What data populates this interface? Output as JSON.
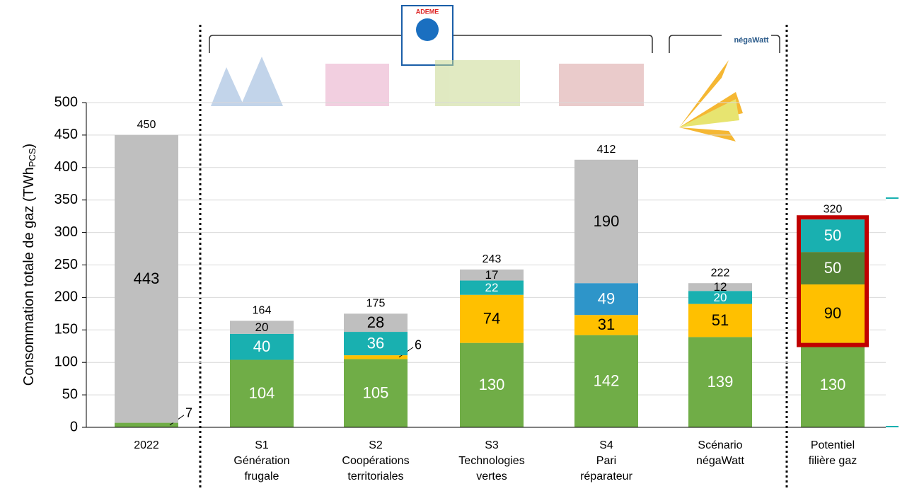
{
  "chart_data": {
    "type": "stacked-bar",
    "y_label": {
      "text": "Consommation totale de gaz (TWh",
      "sub": "PCS",
      "end": ")"
    },
    "logos": [
      "ADEME",
      "négaWatt"
    ],
    "categories": [
      [
        "2022"
      ],
      [
        "S1",
        "Génération",
        "frugale"
      ],
      [
        "S2",
        "Coopérations",
        "territoriales"
      ],
      [
        "S3",
        "Technologies",
        "vertes"
      ],
      [
        "S4",
        "Pari",
        "réparateur"
      ],
      [
        "Scénario",
        "négaWatt"
      ],
      [
        "Potentiel",
        "filière gaz"
      ]
    ],
    "series": [
      {
        "color": "#70ad47",
        "label_color": "#ffffff",
        "values": [
          7,
          104,
          105,
          130,
          142,
          139,
          130
        ]
      },
      {
        "color": "#ffc000",
        "label_color": "#000000",
        "values": [
          null,
          null,
          6,
          74,
          31,
          51,
          90
        ]
      },
      {
        "color": "#548235",
        "label_color": "#ffffff",
        "values": [
          null,
          null,
          null,
          null,
          null,
          null,
          50
        ]
      },
      {
        "color": "#2e95c9",
        "label_color": "#ffffff",
        "values": [
          null,
          null,
          null,
          null,
          49,
          null,
          null
        ]
      },
      {
        "color": "#19b0b0",
        "label_color": "#ffffff",
        "values": [
          null,
          40,
          36,
          22,
          null,
          20,
          50
        ]
      },
      {
        "color": "#bfbfbf",
        "label_color": "#000000",
        "values": [
          443,
          20,
          28,
          17,
          190,
          12,
          null
        ]
      }
    ],
    "totals": [
      450,
      164,
      175,
      243,
      412,
      222,
      320
    ],
    "ylim": [
      0,
      500
    ],
    "yticks": [
      0,
      50,
      100,
      150,
      200,
      250,
      300,
      350,
      400,
      450,
      500
    ],
    "grid": true
  }
}
